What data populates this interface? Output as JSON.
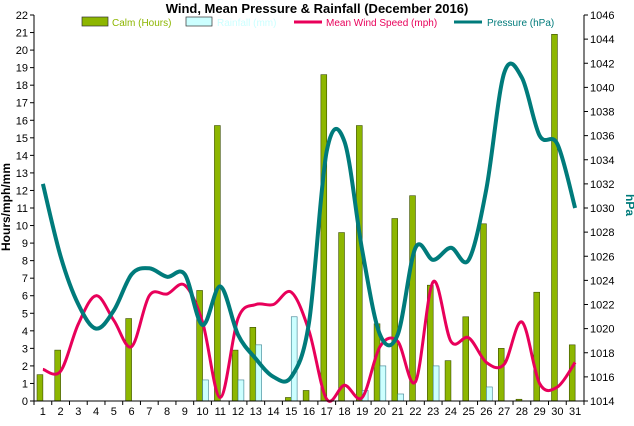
{
  "chart_data": {
    "type": "bar",
    "title": "Wind, Mean Pressure & Rainfall (December 2016)",
    "xlabel": "",
    "ylabel": "Hours/mph/mm",
    "y2label": "hPa",
    "ylim": [
      0,
      22
    ],
    "y2lim": [
      1014,
      1046
    ],
    "grid": false,
    "legend_position": "top",
    "categories": [
      "1",
      "2",
      "3",
      "4",
      "5",
      "6",
      "7",
      "8",
      "9",
      "10",
      "11",
      "12",
      "13",
      "14",
      "15",
      "16",
      "17",
      "18",
      "19",
      "20",
      "21",
      "22",
      "23",
      "24",
      "25",
      "26",
      "27",
      "28",
      "29",
      "30",
      "31"
    ],
    "series": [
      {
        "name": "Calm (Hours)",
        "type": "bar",
        "axis": "left",
        "color": "#8db600",
        "values": [
          1.5,
          2.9,
          0,
          0,
          0,
          4.7,
          0,
          0,
          0,
          6.3,
          15.7,
          2.9,
          4.2,
          0,
          0.2,
          0.6,
          18.6,
          9.6,
          15.7,
          4.4,
          10.4,
          11.7,
          6.6,
          2.3,
          4.8,
          10.1,
          3.0,
          0.1,
          6.2,
          20.9,
          3.2
        ]
      },
      {
        "name": "Rainfall (mm)",
        "type": "bar",
        "axis": "left",
        "color": "#ccffff",
        "values": [
          0,
          0,
          0,
          0,
          0,
          0,
          0,
          0,
          0,
          1.2,
          0,
          1.2,
          3.2,
          0,
          4.8,
          0,
          0,
          0,
          0.6,
          2.0,
          0.4,
          0,
          2.0,
          0,
          0,
          0.8,
          0,
          0,
          0,
          0,
          0
        ]
      },
      {
        "name": "Mean Wind Speed (mph)",
        "type": "line",
        "axis": "left",
        "color": "#e8005a",
        "values": [
          1.8,
          1.7,
          4.4,
          6.0,
          4.6,
          3.1,
          6.0,
          6.1,
          6.6,
          4.5,
          0.2,
          4.7,
          5.5,
          5.5,
          6.2,
          4.0,
          0.1,
          0.9,
          0.2,
          3.1,
          3.4,
          1.1,
          6.8,
          3.4,
          3.6,
          2.2,
          2.1,
          4.5,
          1.0,
          0.8,
          2.2
        ]
      },
      {
        "name": "Pressure (hPa)",
        "type": "line",
        "axis": "right",
        "color": "#007b7b",
        "values": [
          1032,
          1026,
          1022,
          1020,
          1021.5,
          1024.5,
          1025,
          1024.3,
          1024.5,
          1020.3,
          1023.5,
          1019.5,
          1017.5,
          1016,
          1016,
          1020.5,
          1034.7,
          1035.5,
          1026.5,
          1019.5,
          1019.5,
          1026.7,
          1025.7,
          1026.7,
          1025.7,
          1031.6,
          1041.2,
          1040.8,
          1036,
          1035.3,
          1030
        ]
      }
    ]
  }
}
